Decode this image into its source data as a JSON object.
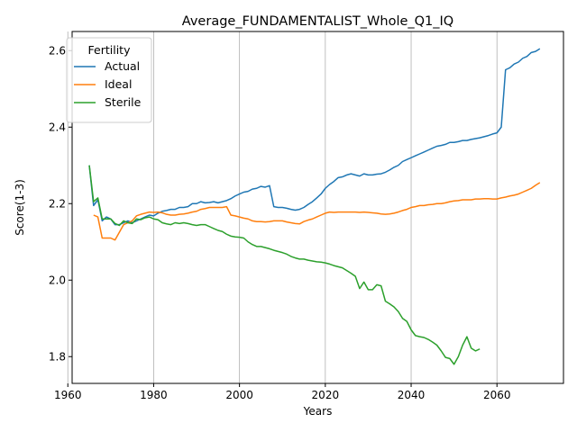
{
  "chart_data": {
    "type": "line",
    "title": "Average_FUNDAMENTALIST_Whole_Q1_IQ",
    "xlabel": "Years",
    "ylabel": "Score(1-3)",
    "xlim": [
      1961,
      2075.5
    ],
    "ylim": [
      1.73,
      2.65
    ],
    "xticks": [
      1960,
      1980,
      2000,
      2020,
      2040,
      2060
    ],
    "yticks": [
      1.8,
      2.0,
      2.2,
      2.4,
      2.6
    ],
    "x_tick_labels": [
      "1960",
      "1980",
      "2000",
      "2020",
      "2040",
      "2060"
    ],
    "y_tick_labels": [
      "1.8",
      "2.0",
      "2.2",
      "2.4",
      "2.6"
    ],
    "grid": "vertical",
    "legend": {
      "title": "Fertility",
      "placement": "upper-left"
    },
    "series": [
      {
        "name": "Actual",
        "color": "#1f77b4",
        "x": [
          1965,
          1966,
          1967,
          1968,
          1969,
          1970,
          1971,
          1972,
          1973,
          1974,
          1975,
          1976,
          1977,
          1978,
          1979,
          1980,
          1981,
          1982,
          1983,
          1984,
          1985,
          1986,
          1987,
          1988,
          1989,
          1990,
          1991,
          1992,
          1993,
          1994,
          1995,
          1996,
          1997,
          1998,
          1999,
          2000,
          2001,
          2002,
          2003,
          2004,
          2005,
          2006,
          2007,
          2008,
          2009,
          2010,
          2011,
          2012,
          2013,
          2014,
          2015,
          2016,
          2017,
          2018,
          2019,
          2020,
          2021,
          2022,
          2023,
          2024,
          2025,
          2026,
          2027,
          2028,
          2029,
          2030,
          2031,
          2032,
          2033,
          2034,
          2035,
          2036,
          2037,
          2038,
          2039,
          2040,
          2041,
          2042,
          2043,
          2044,
          2045,
          2046,
          2047,
          2048,
          2049,
          2050,
          2051,
          2052,
          2053,
          2054,
          2055,
          2056,
          2057,
          2058,
          2059,
          2060,
          2061,
          2062,
          2063,
          2064,
          2065,
          2066,
          2067,
          2068,
          2069,
          2070
        ],
        "y": [
          2.3,
          2.195,
          2.21,
          2.155,
          2.165,
          2.16,
          2.145,
          2.145,
          2.15,
          2.155,
          2.15,
          2.155,
          2.16,
          2.165,
          2.17,
          2.168,
          2.175,
          2.18,
          2.182,
          2.185,
          2.185,
          2.19,
          2.19,
          2.192,
          2.2,
          2.2,
          2.205,
          2.202,
          2.203,
          2.205,
          2.202,
          2.205,
          2.208,
          2.213,
          2.22,
          2.225,
          2.23,
          2.232,
          2.238,
          2.24,
          2.245,
          2.243,
          2.247,
          2.192,
          2.19,
          2.19,
          2.188,
          2.185,
          2.183,
          2.185,
          2.19,
          2.198,
          2.205,
          2.215,
          2.225,
          2.24,
          2.25,
          2.258,
          2.268,
          2.27,
          2.275,
          2.278,
          2.275,
          2.272,
          2.278,
          2.275,
          2.275,
          2.277,
          2.278,
          2.282,
          2.288,
          2.295,
          2.3,
          2.31,
          2.315,
          2.32,
          2.325,
          2.33,
          2.335,
          2.34,
          2.345,
          2.35,
          2.352,
          2.355,
          2.36,
          2.36,
          2.362,
          2.365,
          2.365,
          2.368,
          2.37,
          2.372,
          2.375,
          2.378,
          2.382,
          2.385,
          2.4,
          2.55,
          2.555,
          2.565,
          2.57,
          2.58,
          2.585,
          2.595,
          2.598,
          2.605
        ]
      },
      {
        "name": "Ideal",
        "color": "#ff7f0e",
        "x": [
          1966,
          1967,
          1968,
          1969,
          1970,
          1971,
          1972,
          1973,
          1974,
          1975,
          1976,
          1977,
          1978,
          1979,
          1980,
          1981,
          1982,
          1983,
          1984,
          1985,
          1986,
          1987,
          1988,
          1989,
          1990,
          1991,
          1992,
          1993,
          1994,
          1995,
          1996,
          1997,
          1998,
          1999,
          2000,
          2001,
          2002,
          2003,
          2004,
          2005,
          2006,
          2007,
          2008,
          2009,
          2010,
          2011,
          2012,
          2013,
          2014,
          2015,
          2016,
          2017,
          2018,
          2019,
          2020,
          2021,
          2022,
          2023,
          2024,
          2025,
          2026,
          2027,
          2028,
          2029,
          2030,
          2031,
          2032,
          2033,
          2034,
          2035,
          2036,
          2037,
          2038,
          2039,
          2040,
          2041,
          2042,
          2043,
          2044,
          2045,
          2046,
          2047,
          2048,
          2049,
          2050,
          2051,
          2052,
          2053,
          2054,
          2055,
          2056,
          2057,
          2058,
          2059,
          2060,
          2061,
          2062,
          2063,
          2064,
          2065,
          2066,
          2067,
          2068,
          2069,
          2070
        ],
        "y": [
          2.17,
          2.165,
          2.11,
          2.11,
          2.11,
          2.105,
          2.125,
          2.145,
          2.15,
          2.155,
          2.168,
          2.172,
          2.175,
          2.178,
          2.177,
          2.178,
          2.176,
          2.172,
          2.17,
          2.17,
          2.172,
          2.173,
          2.175,
          2.178,
          2.18,
          2.185,
          2.187,
          2.19,
          2.19,
          2.19,
          2.19,
          2.192,
          2.17,
          2.168,
          2.165,
          2.162,
          2.16,
          2.155,
          2.153,
          2.153,
          2.152,
          2.153,
          2.155,
          2.155,
          2.155,
          2.152,
          2.15,
          2.148,
          2.147,
          2.153,
          2.157,
          2.16,
          2.165,
          2.17,
          2.175,
          2.178,
          2.177,
          2.178,
          2.178,
          2.178,
          2.178,
          2.178,
          2.177,
          2.178,
          2.177,
          2.176,
          2.175,
          2.173,
          2.172,
          2.173,
          2.175,
          2.178,
          2.182,
          2.185,
          2.19,
          2.192,
          2.195,
          2.195,
          2.197,
          2.198,
          2.2,
          2.2,
          2.202,
          2.205,
          2.207,
          2.208,
          2.21,
          2.21,
          2.21,
          2.212,
          2.212,
          2.213,
          2.213,
          2.212,
          2.212,
          2.215,
          2.217,
          2.22,
          2.222,
          2.225,
          2.23,
          2.235,
          2.24,
          2.248,
          2.255
        ]
      },
      {
        "name": "Sterile",
        "color": "#2ca02c",
        "x": [
          1965,
          1966,
          1967,
          1968,
          1969,
          1970,
          1971,
          1972,
          1973,
          1974,
          1975,
          1976,
          1977,
          1978,
          1979,
          1980,
          1981,
          1982,
          1983,
          1984,
          1985,
          1986,
          1987,
          1988,
          1989,
          1990,
          1991,
          1992,
          1993,
          1994,
          1995,
          1996,
          1997,
          1998,
          1999,
          2000,
          2001,
          2002,
          2003,
          2004,
          2005,
          2006,
          2007,
          2008,
          2009,
          2010,
          2011,
          2012,
          2013,
          2014,
          2015,
          2016,
          2017,
          2018,
          2019,
          2020,
          2021,
          2022,
          2023,
          2024,
          2025,
          2026,
          2027,
          2028,
          2029,
          2030,
          2031,
          2032,
          2033,
          2034,
          2035,
          2036,
          2037,
          2038,
          2039,
          2040,
          2041,
          2042,
          2043,
          2044,
          2045,
          2046,
          2047,
          2048,
          2049,
          2050,
          2051,
          2052,
          2053,
          2054,
          2055,
          2056
        ],
        "y": [
          2.3,
          2.205,
          2.215,
          2.16,
          2.16,
          2.16,
          2.148,
          2.143,
          2.155,
          2.15,
          2.148,
          2.16,
          2.158,
          2.163,
          2.165,
          2.16,
          2.158,
          2.15,
          2.147,
          2.145,
          2.15,
          2.148,
          2.15,
          2.148,
          2.145,
          2.143,
          2.145,
          2.145,
          2.14,
          2.135,
          2.13,
          2.127,
          2.12,
          2.115,
          2.113,
          2.112,
          2.11,
          2.1,
          2.093,
          2.088,
          2.088,
          2.085,
          2.082,
          2.078,
          2.075,
          2.072,
          2.068,
          2.062,
          2.058,
          2.055,
          2.055,
          2.052,
          2.05,
          2.048,
          2.047,
          2.045,
          2.042,
          2.038,
          2.035,
          2.032,
          2.025,
          2.018,
          2.01,
          1.978,
          1.995,
          1.975,
          1.975,
          1.988,
          1.985,
          1.945,
          1.938,
          1.93,
          1.918,
          1.9,
          1.892,
          1.87,
          1.855,
          1.852,
          1.85,
          1.845,
          1.838,
          1.83,
          1.815,
          1.798,
          1.795,
          1.78,
          1.8,
          1.83,
          1.852,
          1.822,
          1.815,
          1.82
        ]
      }
    ]
  }
}
